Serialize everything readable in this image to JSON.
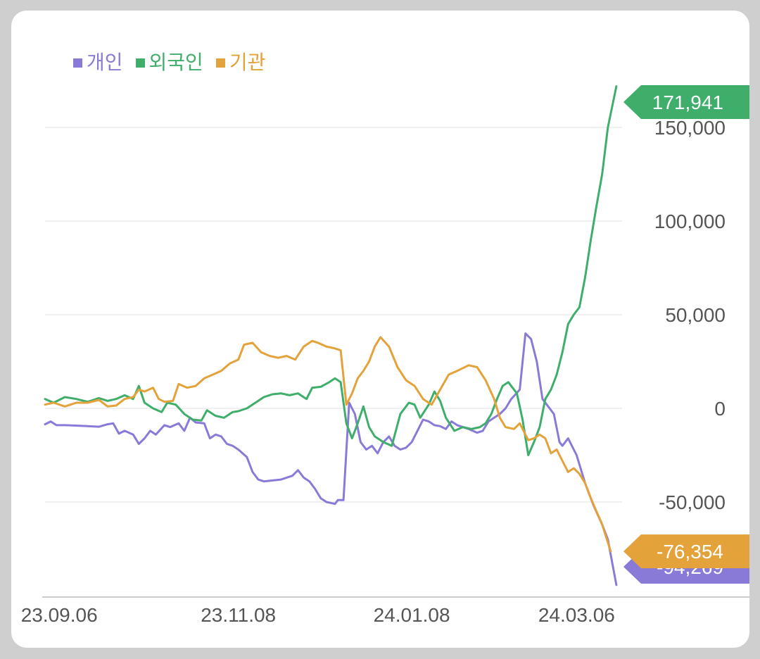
{
  "chart_data": {
    "type": "line",
    "title": "",
    "xlabel": "",
    "ylabel": "",
    "ylim": [
      -100000,
      175000
    ],
    "yticks": [
      150000,
      100000,
      50000,
      0,
      -50000
    ],
    "ytick_labels": [
      "150,000",
      "100,000",
      "50,000",
      "0",
      "-50,000"
    ],
    "x_range": [
      "2023-09-01",
      "2024-03-22"
    ],
    "xticks": [
      "2023-09-06",
      "2023-11-08",
      "2024-01-08",
      "2024-03-06"
    ],
    "xtick_labels": [
      "23.09.06",
      "23.11.08",
      "24.01.08",
      "24.03.06"
    ],
    "grid": true,
    "legend_position": "top-left",
    "series": [
      {
        "name": "개인",
        "color": "#8a7ad8",
        "last_label": "-94,269",
        "points": [
          [
            "2023-09-01",
            -8500
          ],
          [
            "2023-09-03",
            -7000
          ],
          [
            "2023-09-05",
            -9000
          ],
          [
            "2023-09-08",
            -9000
          ],
          [
            "2023-09-12",
            -9200
          ],
          [
            "2023-09-16",
            -9500
          ],
          [
            "2023-09-20",
            -9800
          ],
          [
            "2023-09-23",
            -8500
          ],
          [
            "2023-09-25",
            -8000
          ],
          [
            "2023-09-27",
            -13500
          ],
          [
            "2023-09-29",
            -12000
          ],
          [
            "2023-10-02",
            -14000
          ],
          [
            "2023-10-04",
            -19000
          ],
          [
            "2023-10-06",
            -16000
          ],
          [
            "2023-10-08",
            -12000
          ],
          [
            "2023-10-10",
            -14000
          ],
          [
            "2023-10-13",
            -9000
          ],
          [
            "2023-10-15",
            -10000
          ],
          [
            "2023-10-18",
            -8000
          ],
          [
            "2023-10-20",
            -12000
          ],
          [
            "2023-10-22",
            -5000
          ],
          [
            "2023-10-24",
            -7500
          ],
          [
            "2023-10-27",
            -8000
          ],
          [
            "2023-10-29",
            -16000
          ],
          [
            "2023-10-31",
            -14000
          ],
          [
            "2023-11-02",
            -15000
          ],
          [
            "2023-11-04",
            -19000
          ],
          [
            "2023-11-06",
            -20000
          ],
          [
            "2023-11-08",
            -22000
          ],
          [
            "2023-11-11",
            -26000
          ],
          [
            "2023-11-13",
            -34000
          ],
          [
            "2023-11-15",
            -38000
          ],
          [
            "2023-11-17",
            -39000
          ],
          [
            "2023-11-20",
            -38500
          ],
          [
            "2023-11-23",
            -38000
          ],
          [
            "2023-11-25",
            -37000
          ],
          [
            "2023-11-27",
            -36000
          ],
          [
            "2023-11-29",
            -33000
          ],
          [
            "2023-12-01",
            -37000
          ],
          [
            "2023-12-03",
            -39000
          ],
          [
            "2023-12-05",
            -43000
          ],
          [
            "2023-12-07",
            -48000
          ],
          [
            "2023-12-09",
            -50000
          ],
          [
            "2023-12-12",
            -51000
          ],
          [
            "2023-12-13",
            -49000
          ],
          [
            "2023-12-15",
            -49000
          ],
          [
            "2023-12-17",
            3000
          ],
          [
            "2023-12-19",
            -3000
          ],
          [
            "2023-12-21",
            -18000
          ],
          [
            "2023-12-23",
            -22000
          ],
          [
            "2023-12-25",
            -20000
          ],
          [
            "2023-12-27",
            -24000
          ],
          [
            "2023-12-29",
            -18000
          ],
          [
            "2023-12-31",
            -15000
          ],
          [
            "2024-01-02",
            -20000
          ],
          [
            "2024-01-04",
            -22000
          ],
          [
            "2024-01-06",
            -21000
          ],
          [
            "2024-01-08",
            -18000
          ],
          [
            "2024-01-10",
            -12000
          ],
          [
            "2024-01-12",
            -6000
          ],
          [
            "2024-01-14",
            -7000
          ],
          [
            "2024-01-16",
            -9000
          ],
          [
            "2024-01-18",
            -9500
          ],
          [
            "2024-01-20",
            -11000
          ],
          [
            "2024-01-22",
            -7000
          ],
          [
            "2024-01-24",
            -9000
          ],
          [
            "2024-01-26",
            -10000
          ],
          [
            "2024-01-28",
            -11000
          ],
          [
            "2024-01-31",
            -13000
          ],
          [
            "2024-02-02",
            -12000
          ],
          [
            "2024-02-04",
            -7000
          ],
          [
            "2024-02-06",
            -5000
          ],
          [
            "2024-02-08",
            -3000
          ],
          [
            "2024-02-10",
            0
          ],
          [
            "2024-02-12",
            5000
          ],
          [
            "2024-02-15",
            10000
          ],
          [
            "2024-02-17",
            40000
          ],
          [
            "2024-02-19",
            37000
          ],
          [
            "2024-02-21",
            25000
          ],
          [
            "2024-02-23",
            5000
          ],
          [
            "2024-02-25",
            1000
          ],
          [
            "2024-02-27",
            -3000
          ],
          [
            "2024-02-29",
            -18000
          ],
          [
            "2024-03-01",
            -20000
          ],
          [
            "2024-03-03",
            -16000
          ],
          [
            "2024-03-06",
            -25000
          ],
          [
            "2024-03-09",
            -40000
          ],
          [
            "2024-03-12",
            -52000
          ],
          [
            "2024-03-15",
            -62000
          ],
          [
            "2024-03-17",
            -70000
          ],
          [
            "2024-03-20",
            -94269
          ]
        ]
      },
      {
        "name": "외국인",
        "color": "#3fae6a",
        "last_label": "171,941",
        "points": [
          [
            "2023-09-01",
            5000
          ],
          [
            "2023-09-04",
            3000
          ],
          [
            "2023-09-08",
            6000
          ],
          [
            "2023-09-12",
            5000
          ],
          [
            "2023-09-16",
            3500
          ],
          [
            "2023-09-20",
            5500
          ],
          [
            "2023-09-23",
            4000
          ],
          [
            "2023-09-26",
            5000
          ],
          [
            "2023-09-29",
            7000
          ],
          [
            "2023-10-02",
            5000
          ],
          [
            "2023-10-04",
            12000
          ],
          [
            "2023-10-06",
            3000
          ],
          [
            "2023-10-09",
            0
          ],
          [
            "2023-10-12",
            -2000
          ],
          [
            "2023-10-14",
            3000
          ],
          [
            "2023-10-17",
            2000
          ],
          [
            "2023-10-20",
            -3000
          ],
          [
            "2023-10-23",
            -6000
          ],
          [
            "2023-10-26",
            -6500
          ],
          [
            "2023-10-28",
            -1000
          ],
          [
            "2023-10-31",
            -4000
          ],
          [
            "2023-11-03",
            -5000
          ],
          [
            "2023-11-06",
            -2000
          ],
          [
            "2023-11-08",
            -1500
          ],
          [
            "2023-11-11",
            0
          ],
          [
            "2023-11-14",
            3000
          ],
          [
            "2023-11-17",
            6000
          ],
          [
            "2023-11-20",
            7500
          ],
          [
            "2023-11-23",
            8000
          ],
          [
            "2023-11-26",
            7000
          ],
          [
            "2023-11-29",
            8000
          ],
          [
            "2023-12-02",
            5000
          ],
          [
            "2023-12-04",
            11000
          ],
          [
            "2023-12-07",
            11500
          ],
          [
            "2023-12-10",
            14000
          ],
          [
            "2023-12-12",
            16000
          ],
          [
            "2023-12-14",
            14000
          ],
          [
            "2023-12-16",
            -8000
          ],
          [
            "2023-12-18",
            -16000
          ],
          [
            "2023-12-20",
            -8000
          ],
          [
            "2023-12-22",
            1000
          ],
          [
            "2023-12-24",
            -10000
          ],
          [
            "2023-12-26",
            -15000
          ],
          [
            "2023-12-29",
            -18000
          ],
          [
            "2024-01-01",
            -20000
          ],
          [
            "2024-01-04",
            -3000
          ],
          [
            "2024-01-07",
            3000
          ],
          [
            "2024-01-09",
            2000
          ],
          [
            "2024-01-11",
            -5000
          ],
          [
            "2024-01-14",
            2000
          ],
          [
            "2024-01-16",
            9000
          ],
          [
            "2024-01-18",
            4000
          ],
          [
            "2024-01-20",
            -5000
          ],
          [
            "2024-01-23",
            -12000
          ],
          [
            "2024-01-26",
            -10000
          ],
          [
            "2024-01-29",
            -11000
          ],
          [
            "2024-02-01",
            -10000
          ],
          [
            "2024-02-03",
            -8000
          ],
          [
            "2024-02-05",
            -3000
          ],
          [
            "2024-02-07",
            5000
          ],
          [
            "2024-02-09",
            12000
          ],
          [
            "2024-02-11",
            14000
          ],
          [
            "2024-02-14",
            8000
          ],
          [
            "2024-02-16",
            -6000
          ],
          [
            "2024-02-18",
            -25000
          ],
          [
            "2024-02-20",
            -18000
          ],
          [
            "2024-02-22",
            -10000
          ],
          [
            "2024-02-24",
            5000
          ],
          [
            "2024-02-26",
            10000
          ],
          [
            "2024-02-28",
            18000
          ],
          [
            "2024-03-01",
            30000
          ],
          [
            "2024-03-03",
            45000
          ],
          [
            "2024-03-05",
            50000
          ],
          [
            "2024-03-07",
            54000
          ],
          [
            "2024-03-09",
            70000
          ],
          [
            "2024-03-11",
            90000
          ],
          [
            "2024-03-13",
            108000
          ],
          [
            "2024-03-15",
            125000
          ],
          [
            "2024-03-17",
            150000
          ],
          [
            "2024-03-20",
            171941
          ]
        ]
      },
      {
        "name": "기관",
        "color": "#e3a23a",
        "last_label": "-76,354",
        "points": [
          [
            "2023-09-01",
            2000
          ],
          [
            "2023-09-04",
            3000
          ],
          [
            "2023-09-08",
            1000
          ],
          [
            "2023-09-12",
            3000
          ],
          [
            "2023-09-16",
            3000
          ],
          [
            "2023-09-20",
            4500
          ],
          [
            "2023-09-23",
            1000
          ],
          [
            "2023-09-26",
            1500
          ],
          [
            "2023-09-29",
            5000
          ],
          [
            "2023-10-02",
            6000
          ],
          [
            "2023-10-04",
            10000
          ],
          [
            "2023-10-06",
            9000
          ],
          [
            "2023-10-09",
            11000
          ],
          [
            "2023-10-11",
            5000
          ],
          [
            "2023-10-13",
            3500
          ],
          [
            "2023-10-16",
            4000
          ],
          [
            "2023-10-18",
            13000
          ],
          [
            "2023-10-21",
            11000
          ],
          [
            "2023-10-24",
            12000
          ],
          [
            "2023-10-27",
            16000
          ],
          [
            "2023-10-30",
            18000
          ],
          [
            "2023-11-02",
            20000
          ],
          [
            "2023-11-05",
            24000
          ],
          [
            "2023-11-08",
            26000
          ],
          [
            "2023-11-10",
            34000
          ],
          [
            "2023-11-13",
            35000
          ],
          [
            "2023-11-16",
            30000
          ],
          [
            "2023-11-19",
            28000
          ],
          [
            "2023-11-22",
            27000
          ],
          [
            "2023-11-25",
            28000
          ],
          [
            "2023-11-28",
            26000
          ],
          [
            "2023-12-01",
            33000
          ],
          [
            "2023-12-04",
            36000
          ],
          [
            "2023-12-06",
            35000
          ],
          [
            "2023-12-09",
            33000
          ],
          [
            "2023-12-12",
            32000
          ],
          [
            "2023-12-14",
            31000
          ],
          [
            "2023-12-16",
            2000
          ],
          [
            "2023-12-18",
            8000
          ],
          [
            "2023-12-20",
            16000
          ],
          [
            "2023-12-22",
            20000
          ],
          [
            "2023-12-24",
            25000
          ],
          [
            "2023-12-26",
            33000
          ],
          [
            "2023-12-28",
            38000
          ],
          [
            "2023-12-31",
            33000
          ],
          [
            "2024-01-03",
            22000
          ],
          [
            "2024-01-06",
            15000
          ],
          [
            "2024-01-09",
            12000
          ],
          [
            "2024-01-12",
            5000
          ],
          [
            "2024-01-15",
            2000
          ],
          [
            "2024-01-18",
            10000
          ],
          [
            "2024-01-21",
            18000
          ],
          [
            "2024-01-24",
            20000
          ],
          [
            "2024-01-28",
            23000
          ],
          [
            "2024-01-31",
            22000
          ],
          [
            "2024-02-03",
            15000
          ],
          [
            "2024-02-06",
            5000
          ],
          [
            "2024-02-08",
            -5000
          ],
          [
            "2024-02-10",
            -10000
          ],
          [
            "2024-02-13",
            -11000
          ],
          [
            "2024-02-15",
            -8000
          ],
          [
            "2024-02-18",
            -17000
          ],
          [
            "2024-02-20",
            -16000
          ],
          [
            "2024-02-22",
            -14000
          ],
          [
            "2024-02-24",
            -16000
          ],
          [
            "2024-02-26",
            -24000
          ],
          [
            "2024-02-28",
            -22000
          ],
          [
            "2024-03-01",
            -28000
          ],
          [
            "2024-03-03",
            -34000
          ],
          [
            "2024-03-05",
            -32000
          ],
          [
            "2024-03-07",
            -35000
          ],
          [
            "2024-03-09",
            -40000
          ],
          [
            "2024-03-11",
            -48000
          ],
          [
            "2024-03-13",
            -55000
          ],
          [
            "2024-03-15",
            -62000
          ],
          [
            "2024-03-18",
            -76354
          ]
        ]
      }
    ]
  }
}
